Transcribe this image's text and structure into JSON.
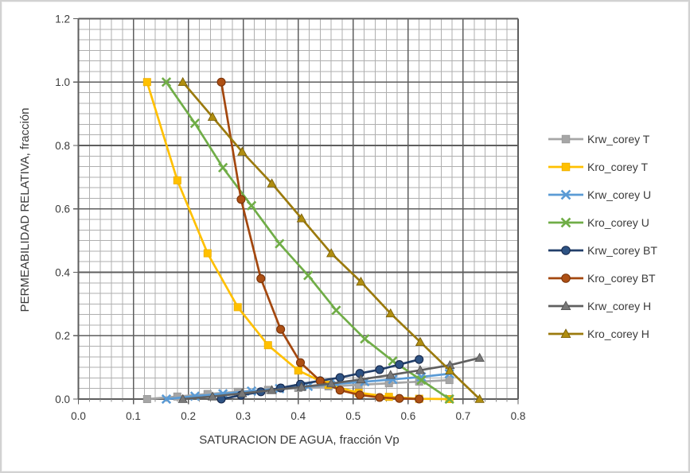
{
  "chart": {
    "x_title": "SATURACION DE AGUA, fracción Vp",
    "y_title": "PERMEABILIDAD RELATIVA, fracción"
  },
  "chart_data": {
    "type": "line",
    "title": "",
    "xlabel": "SATURACION DE AGUA, fracción Vp",
    "ylabel": "PERMEABILIDAD RELATIVA, fracción",
    "xlim": [
      0.0,
      0.8
    ],
    "ylim": [
      0.0,
      1.2
    ],
    "x_major": 0.1,
    "x_minor": 0.02,
    "y_major": 0.2,
    "y_minor": 0.0333333,
    "x_ticks": [
      "0.0",
      "0.1",
      "0.2",
      "0.3",
      "0.4",
      "0.5",
      "0.6",
      "0.7",
      "0.8"
    ],
    "y_ticks": [
      "0.0",
      "0.2",
      "0.4",
      "0.6",
      "0.8",
      "1.0",
      "1.2"
    ],
    "grid": "major+minor",
    "legend_position": "right",
    "grid_minor_color": "#afafaf",
    "grid_major_color": "#5e5e5e",
    "axis_text_color": "#3a3a3a",
    "series": [
      {
        "name": "Krw_corey T",
        "marker": "square",
        "color": "#a6a6a6",
        "marker_fill": "#a6a6a6",
        "marker_edge": "#999999",
        "x": [
          0.125,
          0.18,
          0.235,
          0.29,
          0.345,
          0.4,
          0.455,
          0.51,
          0.565,
          0.62,
          0.675
        ],
        "y": [
          0.0,
          0.008,
          0.016,
          0.023,
          0.029,
          0.035,
          0.04,
          0.045,
          0.05,
          0.055,
          0.06
        ]
      },
      {
        "name": "Kro_corey T",
        "marker": "square",
        "color": "#ffc000",
        "marker_fill": "#ffc000",
        "marker_edge": "#ecae00",
        "x": [
          0.125,
          0.18,
          0.235,
          0.29,
          0.345,
          0.4,
          0.455,
          0.51,
          0.565,
          0.62,
          0.675
        ],
        "y": [
          1.0,
          0.69,
          0.46,
          0.29,
          0.17,
          0.09,
          0.045,
          0.02,
          0.007,
          0.001,
          0.0
        ]
      },
      {
        "name": "Krw_corey U",
        "marker": "x",
        "color": "#5b9bd5",
        "marker_fill": "#5b9bd5",
        "marker_edge": "#5b9bd5",
        "x": [
          0.16,
          0.212,
          0.263,
          0.315,
          0.366,
          0.418,
          0.469,
          0.521,
          0.572,
          0.624,
          0.675
        ],
        "y": [
          0.0,
          0.009,
          0.017,
          0.025,
          0.033,
          0.04,
          0.048,
          0.055,
          0.062,
          0.07,
          0.08
        ]
      },
      {
        "name": "Kro_corey U",
        "marker": "x",
        "color": "#70ad47",
        "marker_fill": "#70ad47",
        "marker_edge": "#70ad47",
        "x": [
          0.16,
          0.212,
          0.263,
          0.315,
          0.366,
          0.418,
          0.469,
          0.521,
          0.572,
          0.624,
          0.675
        ],
        "y": [
          1.0,
          0.87,
          0.73,
          0.61,
          0.49,
          0.39,
          0.28,
          0.19,
          0.12,
          0.06,
          0.0
        ]
      },
      {
        "name": "Krw_corey BT",
        "marker": "circle",
        "color": "#223f6a",
        "marker_fill": "#2e5384",
        "marker_edge": "#17294d",
        "x": [
          0.26,
          0.296,
          0.332,
          0.368,
          0.404,
          0.44,
          0.476,
          0.512,
          0.548,
          0.584,
          0.62
        ],
        "y": [
          0.0,
          0.012,
          0.023,
          0.035,
          0.047,
          0.058,
          0.068,
          0.081,
          0.093,
          0.109,
          0.125
        ]
      },
      {
        "name": "Kro_corey BT",
        "marker": "circle",
        "color": "#a3470e",
        "marker_fill": "#ae5014",
        "marker_edge": "#7a3409",
        "x": [
          0.26,
          0.296,
          0.332,
          0.368,
          0.404,
          0.44,
          0.476,
          0.512,
          0.548,
          0.584,
          0.62
        ],
        "y": [
          1.0,
          0.63,
          0.38,
          0.22,
          0.115,
          0.057,
          0.028,
          0.013,
          0.005,
          0.002,
          0.0
        ]
      },
      {
        "name": "Krw_corey H",
        "marker": "triangle",
        "color": "#606060",
        "marker_fill": "#787878",
        "marker_edge": "#4f4f4f",
        "x": [
          0.19,
          0.244,
          0.298,
          0.352,
          0.406,
          0.46,
          0.514,
          0.568,
          0.622,
          0.676,
          0.73
        ],
        "y": [
          0.0,
          0.008,
          0.018,
          0.028,
          0.038,
          0.049,
          0.062,
          0.076,
          0.091,
          0.107,
          0.13
        ]
      },
      {
        "name": "Kro_corey H",
        "marker": "triangle",
        "color": "#9b7a0d",
        "marker_fill": "#b08e10",
        "marker_edge": "#745a06",
        "x": [
          0.19,
          0.244,
          0.298,
          0.352,
          0.406,
          0.46,
          0.514,
          0.568,
          0.622,
          0.676,
          0.73
        ],
        "y": [
          1.0,
          0.89,
          0.78,
          0.68,
          0.57,
          0.46,
          0.37,
          0.27,
          0.18,
          0.09,
          0.0
        ]
      }
    ]
  }
}
